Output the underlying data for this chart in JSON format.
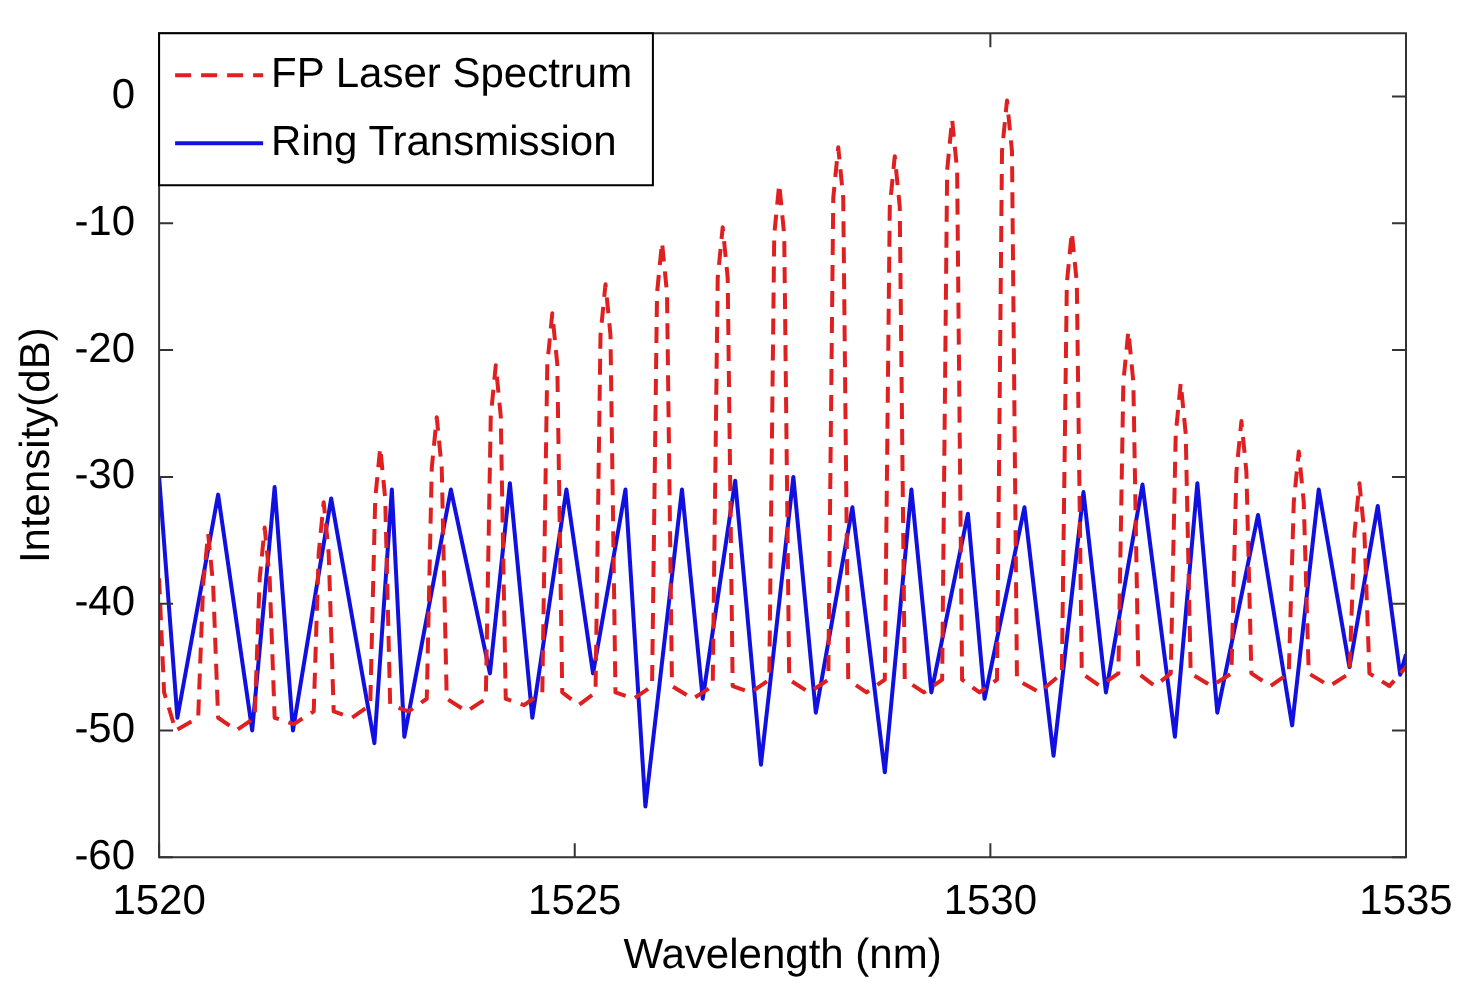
{
  "chart_data": {
    "type": "line",
    "xlabel": "Wavelength (nm)",
    "ylabel": "Intensity(dB)",
    "xlim": [
      1520,
      1535
    ],
    "xticks": [
      1520,
      1525,
      1530,
      1535
    ],
    "ylim": [
      -60,
      5
    ],
    "yticks": [
      -60,
      -50,
      -40,
      -30,
      -20,
      -10,
      0
    ],
    "grid": false,
    "legend": "top left",
    "marker": "none",
    "series": [
      {
        "name": "FP Laser Spectrum",
        "color": "#e02020",
        "line_style": "dashed",
        "x": [
          1520.0,
          1520.06,
          1520.2,
          1520.47,
          1520.53,
          1520.59,
          1520.65,
          1520.71,
          1520.93,
          1521.15,
          1521.21,
          1521.27,
          1521.33,
          1521.39,
          1521.62,
          1521.86,
          1521.92,
          1521.98,
          1522.04,
          1522.1,
          1522.32,
          1522.54,
          1522.6,
          1522.66,
          1522.72,
          1522.78,
          1523.0,
          1523.22,
          1523.28,
          1523.34,
          1523.4,
          1523.46,
          1523.7,
          1523.93,
          1523.99,
          1524.05,
          1524.11,
          1524.17,
          1524.39,
          1524.61,
          1524.67,
          1524.73,
          1524.79,
          1524.85,
          1525.05,
          1525.25,
          1525.31,
          1525.37,
          1525.43,
          1525.49,
          1525.71,
          1525.93,
          1525.99,
          1526.05,
          1526.11,
          1526.17,
          1526.42,
          1526.66,
          1526.72,
          1526.78,
          1526.84,
          1526.9,
          1527.12,
          1527.34,
          1527.4,
          1527.46,
          1527.52,
          1527.58,
          1527.82,
          1528.05,
          1528.11,
          1528.17,
          1528.23,
          1528.29,
          1528.51,
          1528.73,
          1528.79,
          1528.85,
          1528.91,
          1528.97,
          1529.2,
          1529.42,
          1529.48,
          1529.54,
          1529.6,
          1529.66,
          1529.87,
          1530.08,
          1530.14,
          1530.2,
          1530.26,
          1530.32,
          1530.59,
          1530.86,
          1530.92,
          1530.98,
          1531.04,
          1531.1,
          1531.32,
          1531.54,
          1531.6,
          1531.66,
          1531.72,
          1531.78,
          1531.98,
          1532.17,
          1532.23,
          1532.29,
          1532.35,
          1532.41,
          1532.66,
          1532.9,
          1532.96,
          1533.02,
          1533.08,
          1533.14,
          1533.37,
          1533.59,
          1533.65,
          1533.71,
          1533.77,
          1533.83,
          1534.08,
          1534.32,
          1534.38,
          1534.44,
          1534.5,
          1534.56,
          1534.8,
          1535.0
        ],
        "values": [
          -38,
          -47,
          -50,
          -49,
          -38.5,
          -34.5,
          -38.5,
          -49,
          -50,
          -49,
          -38,
          -34,
          -38,
          -49,
          -49.5,
          -48.5,
          -36,
          -32,
          -36,
          -48.5,
          -49,
          -48,
          -31.7,
          -27.7,
          -31.7,
          -48,
          -48.5,
          -47.5,
          -29.3,
          -25.3,
          -29.3,
          -47.5,
          -48.5,
          -47.5,
          -25.2,
          -21.2,
          -25.2,
          -47.5,
          -48,
          -47,
          -21.1,
          -17.1,
          -21.1,
          -47,
          -48,
          -47,
          -18.8,
          -14.8,
          -18.8,
          -47,
          -47.5,
          -46.5,
          -15.5,
          -11.5,
          -15.5,
          -46.5,
          -47.5,
          -46.5,
          -14.3,
          -10.3,
          -14.3,
          -46.5,
          -47,
          -46,
          -10.9,
          -6.9,
          -10.9,
          -46,
          -47,
          -46,
          -8,
          -4,
          -8,
          -46,
          -47,
          -46,
          -8.7,
          -4.7,
          -8.7,
          -46,
          -47,
          -46,
          -5.8,
          -1.8,
          -5.8,
          -46,
          -47,
          -46,
          -4.3,
          -0.3,
          -4.3,
          -46,
          -47,
          -45.5,
          -14.7,
          -10.7,
          -14.7,
          -45.5,
          -46.5,
          -45.5,
          -22.5,
          -18.5,
          -22.5,
          -45.5,
          -46.5,
          -45.5,
          -26.6,
          -22.6,
          -26.6,
          -45.5,
          -46.5,
          -45.5,
          -29.6,
          -25.6,
          -29.6,
          -45.5,
          -46.5,
          -45.5,
          -32,
          -28,
          -32,
          -45.5,
          -46.5,
          -45.5,
          -34.5,
          -30.5,
          -34.5,
          -45.5,
          -46.5,
          -45
        ]
      },
      {
        "name": "Ring Transmission",
        "color": "#1010e0",
        "line_style": "solid",
        "x": [
          1520.0,
          1520.22,
          1520.71,
          1521.12,
          1521.39,
          1521.61,
          1522.07,
          1522.59,
          1522.8,
          1522.95,
          1523.51,
          1523.98,
          1524.22,
          1524.49,
          1524.9,
          1525.22,
          1525.61,
          1525.85,
          1526.29,
          1526.54,
          1526.93,
          1527.24,
          1527.63,
          1527.9,
          1528.34,
          1528.73,
          1529.05,
          1529.29,
          1529.73,
          1529.93,
          1530.41,
          1530.76,
          1531.12,
          1531.39,
          1531.83,
          1532.22,
          1532.49,
          1532.73,
          1533.22,
          1533.63,
          1533.95,
          1534.32,
          1534.66,
          1534.93,
          1535.0
        ],
        "values": [
          -30,
          -49,
          -31.4,
          -50,
          -30.8,
          -50,
          -31.7,
          -51,
          -31,
          -50.5,
          -31,
          -45.5,
          -30.5,
          -49,
          -31,
          -45.5,
          -31,
          -56,
          -31,
          -47.5,
          -30.3,
          -52.7,
          -30,
          -48.6,
          -32.4,
          -53.3,
          -31,
          -47,
          -32.9,
          -47.5,
          -32.4,
          -52,
          -31.2,
          -47,
          -30.6,
          -50.5,
          -30.5,
          -48.6,
          -33,
          -49.6,
          -31,
          -45,
          -32.3,
          -45.6,
          -44
        ]
      }
    ]
  }
}
